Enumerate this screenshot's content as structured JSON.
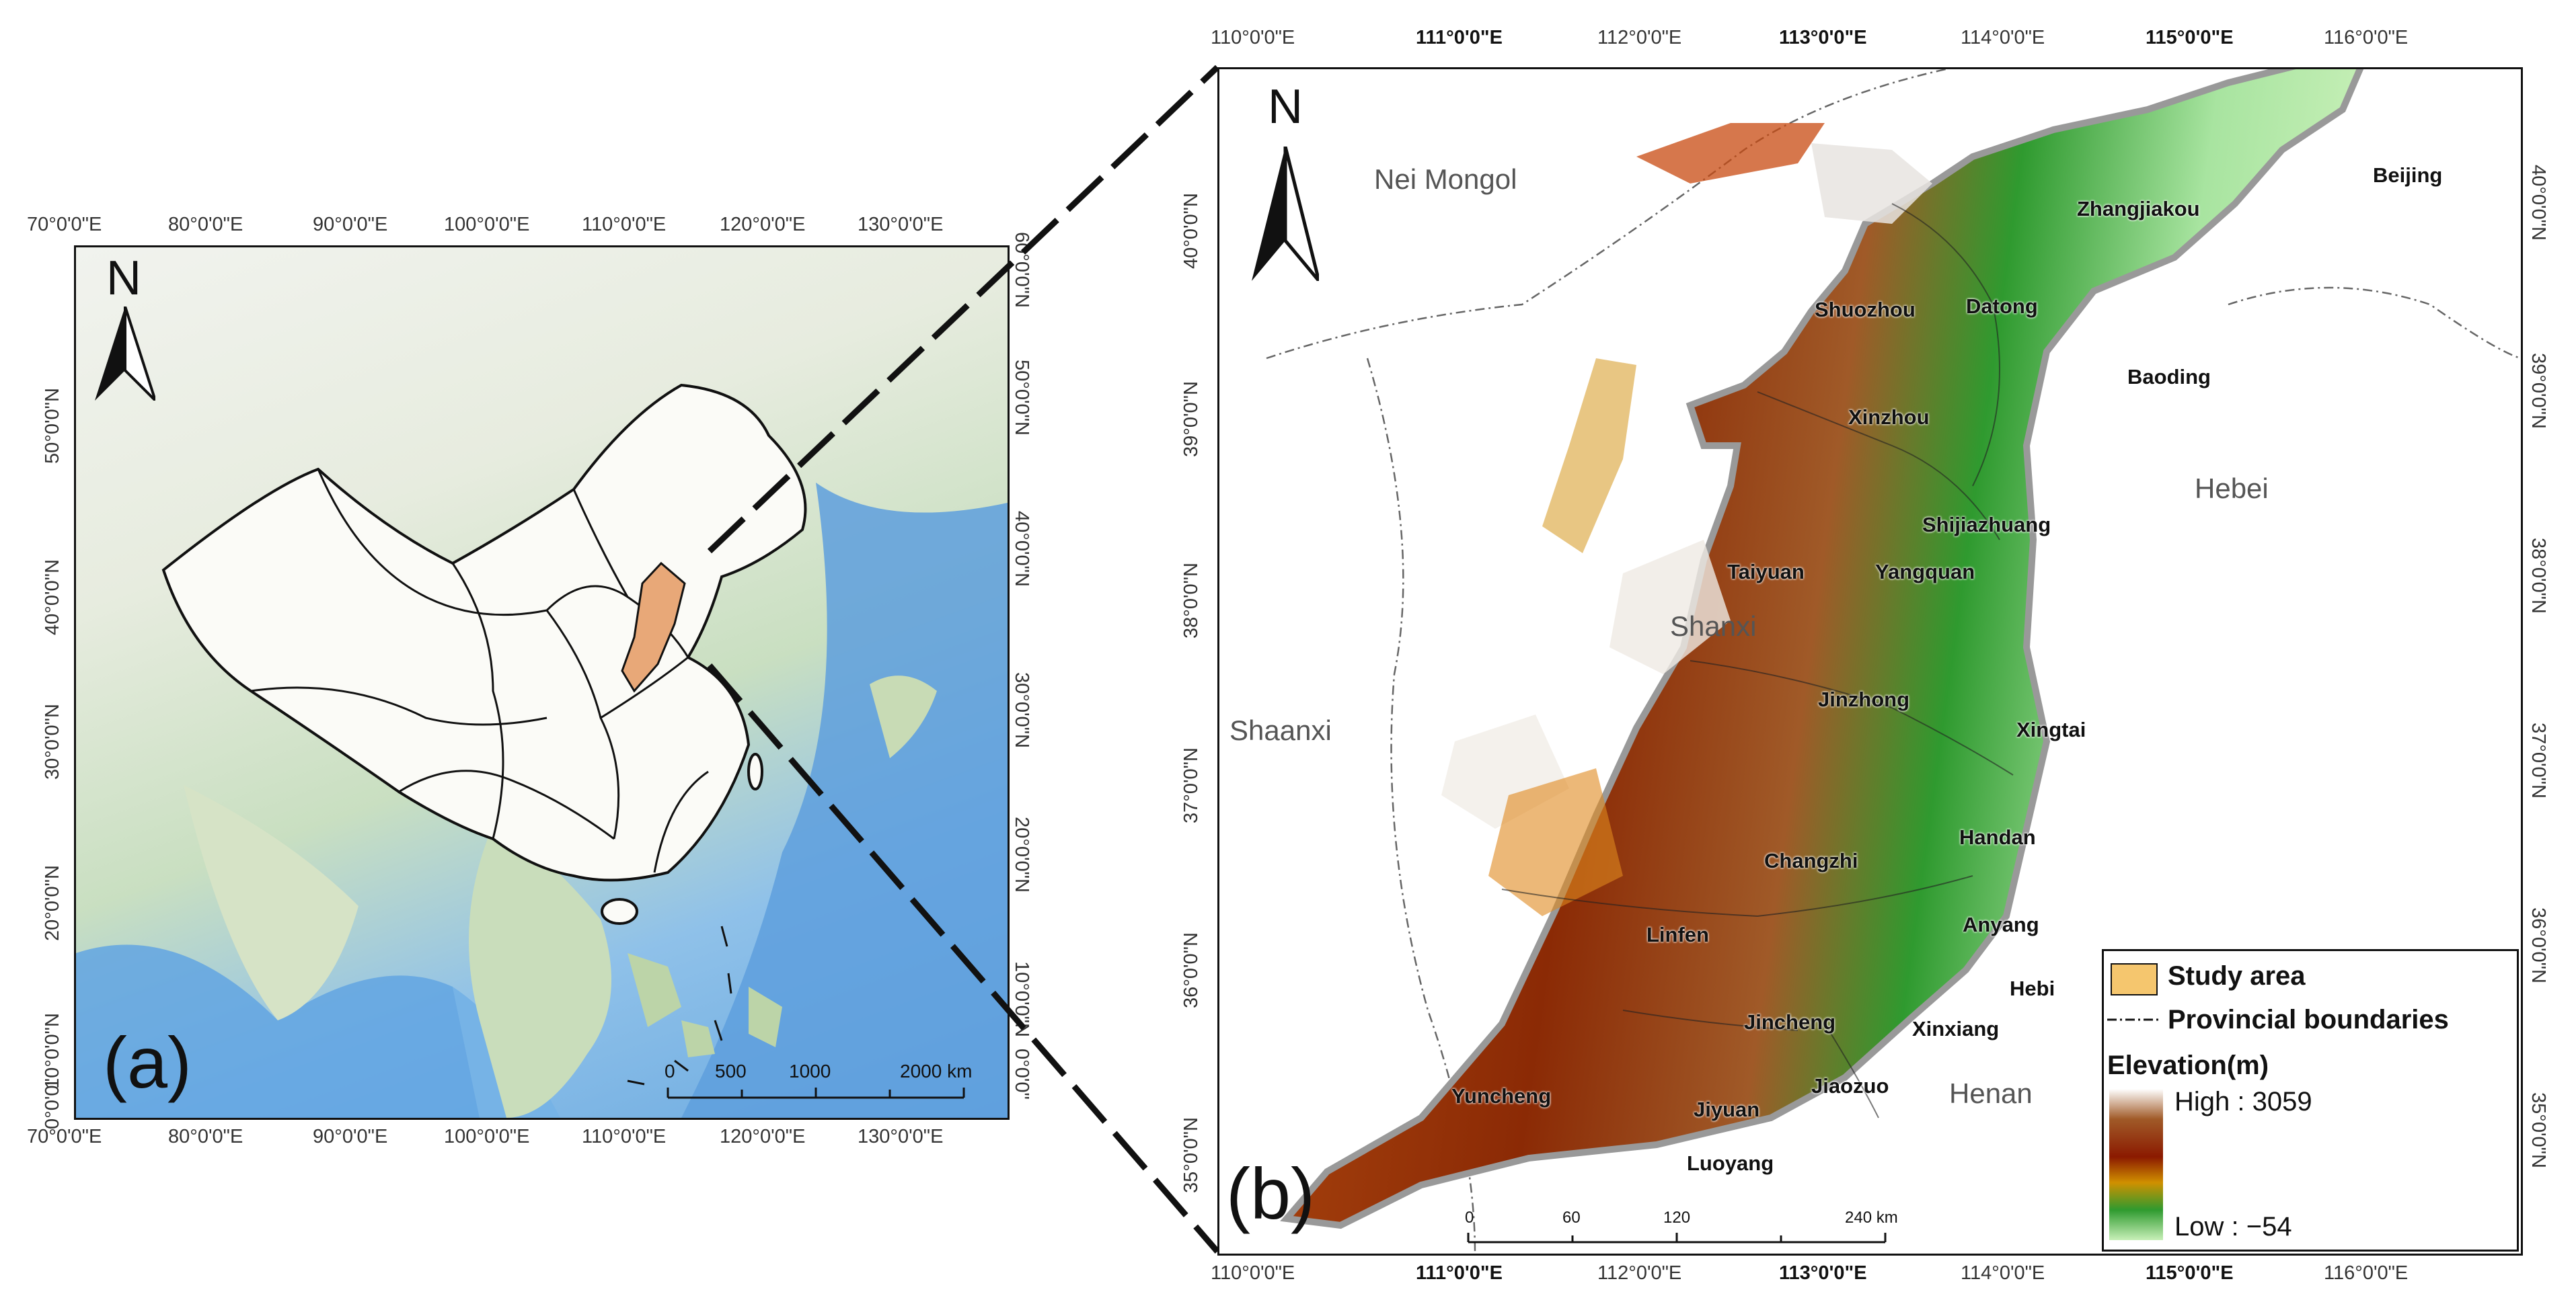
{
  "panel_a": {
    "letter": "(a)",
    "north": "N",
    "lon_ticks_top": [
      "70°0'0\"E",
      "80°0'0\"E",
      "90°0'0\"E",
      "100°0'0\"E",
      "110°0'0\"E",
      "120°0'0\"E",
      "130°0'0\"E"
    ],
    "lon_ticks_bottom": [
      "70°0'0\"E",
      "80°0'0\"E",
      "90°0'0\"E",
      "100°0'0\"E",
      "110°0'0\"E",
      "120°0'0\"E",
      "130°0'0\"E"
    ],
    "lat_ticks_left": [
      "50°0'0\"N",
      "40°0'0\"N",
      "30°0'0\"N",
      "20°0'0\"N",
      "10°0'0\"N",
      "0°0'0\""
    ],
    "lat_ticks_right": [
      "60°0'0\"N",
      "50°0'0\"N",
      "40°0'0\"N",
      "30°0'0\"N",
      "20°0'0\"N",
      "10°0'0\"N",
      "0°0'0\""
    ],
    "scale": {
      "labels": [
        "0",
        "500",
        "1000",
        "2000 km"
      ]
    },
    "colors": {
      "study_area": "#e8a878",
      "boundary": "#111111",
      "sea": "#6aa9e0"
    }
  },
  "panel_b": {
    "letter": "(b)",
    "north": "N",
    "lon_ticks_top": [
      "110°0'0\"E",
      "111°0'0\"E",
      "112°0'0\"E",
      "113°0'0\"E",
      "114°0'0\"E",
      "115°0'0\"E",
      "116°0'0\"E"
    ],
    "lon_ticks_bottom": [
      "110°0'0\"E",
      "111°0'0\"E",
      "112°0'0\"E",
      "113°0'0\"E",
      "114°0'0\"E",
      "115°0'0\"E",
      "116°0'0\"E"
    ],
    "lat_ticks_left": [
      "40°0'0\"N",
      "39°0'0\"N",
      "38°0'0\"N",
      "37°0'0\"N",
      "36°0'0\"N",
      "35°0'0\"N"
    ],
    "lat_ticks_right": [
      "40°0'0\"N",
      "39°0'0\"N",
      "38°0'0\"N",
      "37°0'0\"N",
      "36°0'0\"N",
      "35°0'0\"N"
    ],
    "provinces": [
      "Nei Mongol",
      "Hebei",
      "Shanxi",
      "Shaanxi",
      "Henan"
    ],
    "cities": [
      "Beijing",
      "Zhangjiakou",
      "Datong",
      "Shuozhou",
      "Baoding",
      "Xinzhou",
      "Shijiazhuang",
      "Taiyuan",
      "Yangquan",
      "Jinzhong",
      "Xingtai",
      "Handan",
      "Changzhi",
      "Anyang",
      "Linfen",
      "Hebi",
      "Jincheng",
      "Xinxiang",
      "Yuncheng",
      "Jiaozuo",
      "Jiyuan",
      "Luoyang"
    ],
    "scale": {
      "labels": [
        "0",
        "60",
        "120",
        "240 km"
      ]
    }
  },
  "legend": {
    "study_area": "Study area",
    "provincial_boundaries": "Provincial boundaries",
    "elevation_title": "Elevation(m)",
    "high": "High : 3059",
    "low": "Low : −54",
    "colors": {
      "study_area": "#f5c66e",
      "ramp": [
        "#ffffff",
        "#a05a28",
        "#8b1a00",
        "#d09000",
        "#2f9a2f",
        "#c8f0b8"
      ]
    }
  }
}
